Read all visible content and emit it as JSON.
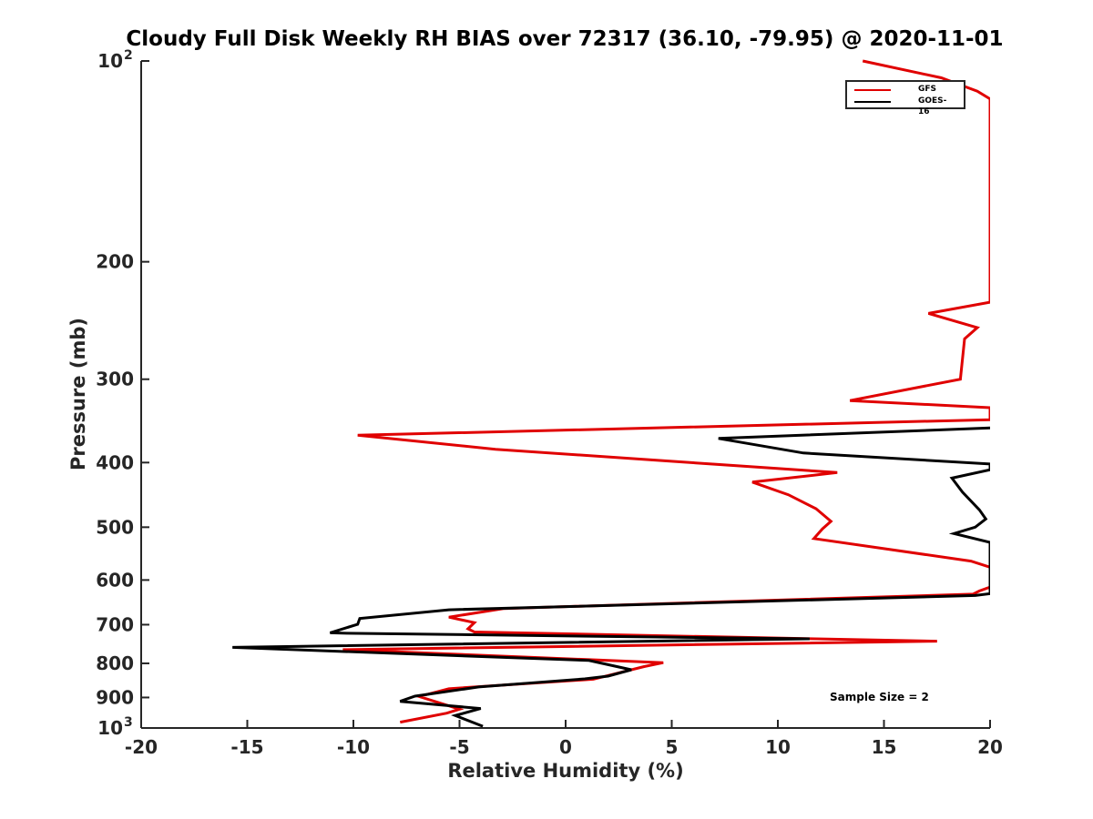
{
  "chart_data": {
    "type": "line",
    "title": "Cloudy Full Disk Weekly RH BIAS over 72317 (36.10, -79.95) @ 2020-11-01",
    "xlabel": "Relative Humidity (%)",
    "ylabel": "Pressure (mb)",
    "xlim": [
      -20,
      20
    ],
    "ylim": [
      100,
      1000
    ],
    "yscale": "log",
    "y_reversed": true,
    "grid": false,
    "legend_position": "top-right",
    "x_ticks": [
      "-20",
      "-15",
      "-10",
      "-5",
      "0",
      "5",
      "10",
      "15",
      "20"
    ],
    "y_ticks": [
      {
        "label": "10",
        "sup": "2",
        "value": 100
      },
      {
        "label": "200",
        "sup": "",
        "value": 200
      },
      {
        "label": "300",
        "sup": "",
        "value": 300
      },
      {
        "label": "400",
        "sup": "",
        "value": 400
      },
      {
        "label": "500",
        "sup": "",
        "value": 500
      },
      {
        "label": "600",
        "sup": "",
        "value": 600
      },
      {
        "label": "700",
        "sup": "",
        "value": 700
      },
      {
        "label": "800",
        "sup": "",
        "value": 800
      },
      {
        "label": "900",
        "sup": "",
        "value": 900
      },
      {
        "label": "10",
        "sup": "3",
        "value": 1000
      }
    ],
    "annotation": "Sample Size = 2",
    "series": [
      {
        "name": "GFS",
        "color": "#e00000",
        "points": [
          [
            14,
            100
          ],
          [
            17.7,
            106
          ],
          [
            19.4,
            111
          ],
          [
            20,
            114
          ],
          [
            20,
            230
          ],
          [
            17.1,
            239
          ],
          [
            19.4,
            251
          ],
          [
            18.8,
            261
          ],
          [
            18.6,
            300
          ],
          [
            13.4,
            323
          ],
          [
            20,
            331
          ],
          [
            20,
            345
          ],
          [
            -9.8,
            364
          ],
          [
            -3.3,
            382
          ],
          [
            12.8,
            414
          ],
          [
            8.8,
            428
          ],
          [
            10.5,
            447
          ],
          [
            11.8,
            469
          ],
          [
            12.5,
            490
          ],
          [
            12.1,
            503
          ],
          [
            11.7,
            520
          ],
          [
            19.1,
            562
          ],
          [
            20,
            574
          ],
          [
            20,
            615
          ],
          [
            19.5,
            623
          ],
          [
            19.2,
            630
          ],
          [
            -2.9,
            662
          ],
          [
            -5.5,
            682
          ],
          [
            -4.3,
            695
          ],
          [
            -4.6,
            710
          ],
          [
            -4.3,
            718
          ],
          [
            17.5,
            741
          ],
          [
            -10.5,
            763
          ],
          [
            4.6,
            798
          ],
          [
            3.7,
            809
          ],
          [
            1.3,
            845
          ],
          [
            -5.5,
            873
          ],
          [
            -6.9,
            897
          ],
          [
            -5,
            937
          ],
          [
            -5.6,
            950
          ],
          [
            -7.8,
            980
          ]
        ]
      },
      {
        "name": "GOES-16",
        "color": "#000000",
        "points": [
          [
            20,
            355
          ],
          [
            7.2,
            368
          ],
          [
            11.2,
            387
          ],
          [
            20,
            402
          ],
          [
            20,
            410
          ],
          [
            18.2,
            422
          ],
          [
            18.7,
            443
          ],
          [
            19.5,
            471
          ],
          [
            19.8,
            486
          ],
          [
            19.3,
            500
          ],
          [
            18.3,
            511
          ],
          [
            20,
            527
          ],
          [
            20,
            629
          ],
          [
            19.3,
            633
          ],
          [
            -5.5,
            665
          ],
          [
            -9.7,
            685
          ],
          [
            -9.8,
            699
          ],
          [
            -11.1,
            720
          ],
          [
            -10.3,
            721
          ],
          [
            11.5,
            735
          ],
          [
            -15.7,
            757
          ],
          [
            1.1,
            792
          ],
          [
            3.1,
            818
          ],
          [
            2,
            836
          ],
          [
            0.9,
            844
          ],
          [
            -4.1,
            868
          ],
          [
            -7.1,
            896
          ],
          [
            -7.8,
            912
          ],
          [
            -4,
            935
          ],
          [
            -5.2,
            958
          ],
          [
            -3.9,
            994
          ]
        ]
      }
    ]
  }
}
